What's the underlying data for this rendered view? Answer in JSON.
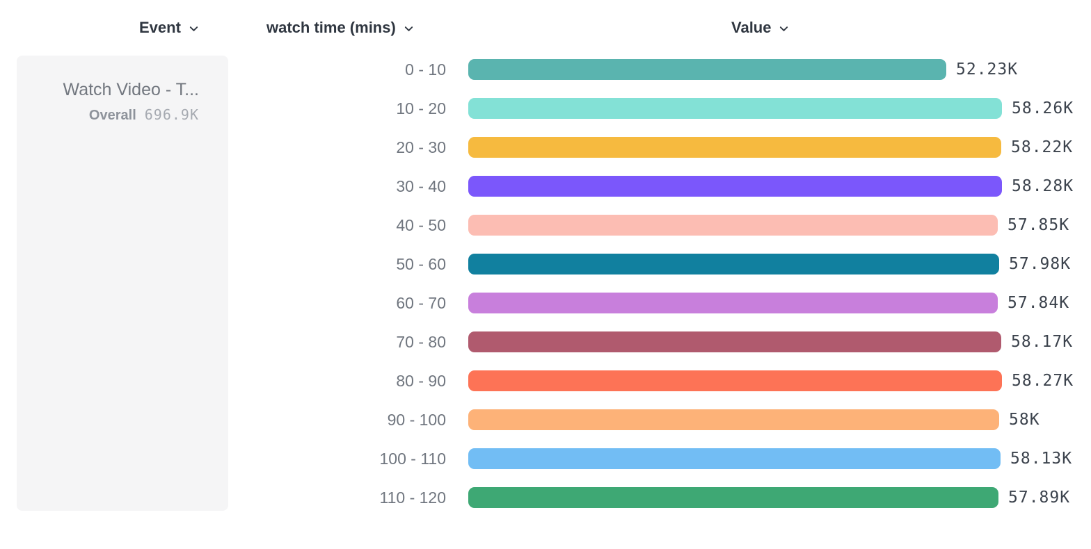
{
  "header": {
    "event_label": "Event",
    "dimension_label": "watch time (mins)",
    "value_label": "Value"
  },
  "event_card": {
    "name": "Watch Video - T...",
    "overall_label": "Overall",
    "overall_value": "696.9K"
  },
  "icons": {
    "header_dropdown": "chevron-down"
  },
  "colors": {
    "header_text": "#2f3640",
    "row_label_text": "#70767f",
    "value_text": "#3c434d",
    "card_background": "#f5f5f6",
    "card_name_text": "#72777f",
    "overall_label_text": "#8e939b",
    "overall_value_text": "#a6aab1",
    "page_background": "#ffffff"
  },
  "chart_data": {
    "type": "bar",
    "orientation": "horizontal",
    "title": "",
    "xlabel": "Value",
    "ylabel": "watch time (mins)",
    "xlim": [
      0,
      58280
    ],
    "grid": false,
    "categories": [
      "0 - 10",
      "10 - 20",
      "20 - 30",
      "30 - 40",
      "40 - 50",
      "50 - 60",
      "60 - 70",
      "70 - 80",
      "80 - 90",
      "90 - 100",
      "100 - 110",
      "110 - 120"
    ],
    "values": [
      52230,
      58260,
      58220,
      58280,
      57850,
      57980,
      57840,
      58170,
      58270,
      58000,
      58130,
      57890
    ],
    "value_labels": [
      "52.23K",
      "58.26K",
      "58.22K",
      "58.28K",
      "57.85K",
      "57.98K",
      "57.84K",
      "58.17K",
      "58.27K",
      "58K",
      "58.13K",
      "57.89K"
    ],
    "bar_colors": [
      "#5ab4af",
      "#83e1d6",
      "#f6ba3f",
      "#7b57fb",
      "#fcbdb3",
      "#11809f",
      "#c87fdc",
      "#b05a6e",
      "#fd7356",
      "#fdb278",
      "#72bdf4",
      "#3ea874"
    ]
  },
  "layout_hints": {
    "legend": "none",
    "value_labels_position": "end-of-bar"
  }
}
